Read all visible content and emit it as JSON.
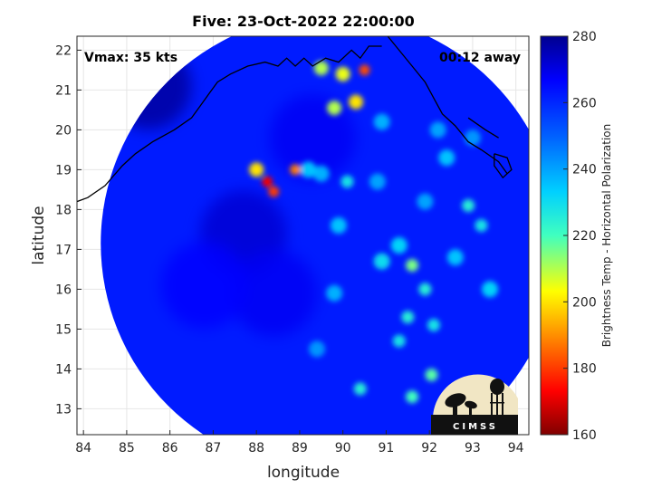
{
  "chart_data": {
    "type": "heatmap",
    "title": "Five: 23-Oct-2022 22:00:00",
    "xlabel": "longitude",
    "ylabel": "latitude",
    "xlim": [
      83.85,
      94.3
    ],
    "ylim": [
      12.35,
      22.35
    ],
    "xticks": [
      "84",
      "85",
      "86",
      "87",
      "88",
      "89",
      "90",
      "91",
      "92",
      "93",
      "94"
    ],
    "yticks": [
      "13",
      "14",
      "15",
      "16",
      "17",
      "18",
      "19",
      "20",
      "21",
      "22"
    ],
    "grid": true,
    "colorbar": {
      "label": "Brightness Temp - Horizontal Polarization",
      "range": [
        160,
        280
      ],
      "ticks": [
        "160",
        "180",
        "200",
        "220",
        "240",
        "260",
        "280"
      ],
      "colormap": "jet"
    },
    "swath_center": [
      89.7,
      17.15
    ],
    "swath_radius_deg": 5.3,
    "background_temp": 262,
    "cold_features": [
      {
        "lon": 88.25,
        "lat": 18.7,
        "temp": 172
      },
      {
        "lon": 88.4,
        "lat": 18.45,
        "temp": 180
      },
      {
        "lon": 88.9,
        "lat": 19.0,
        "temp": 188
      },
      {
        "lon": 88.0,
        "lat": 19.0,
        "temp": 200
      },
      {
        "lon": 90.5,
        "lat": 21.5,
        "temp": 182
      },
      {
        "lon": 90.0,
        "lat": 21.4,
        "temp": 205
      },
      {
        "lon": 89.5,
        "lat": 21.55,
        "temp": 210
      },
      {
        "lon": 90.3,
        "lat": 20.7,
        "temp": 200
      },
      {
        "lon": 89.8,
        "lat": 20.55,
        "temp": 210
      },
      {
        "lon": 91.6,
        "lat": 16.6,
        "temp": 215
      },
      {
        "lon": 92.05,
        "lat": 13.85,
        "temp": 218
      },
      {
        "lon": 91.6,
        "lat": 13.3,
        "temp": 220
      },
      {
        "lon": 90.4,
        "lat": 13.5,
        "temp": 225
      },
      {
        "lon": 91.3,
        "lat": 14.7,
        "temp": 228
      },
      {
        "lon": 91.5,
        "lat": 15.3,
        "temp": 225
      },
      {
        "lon": 92.1,
        "lat": 15.1,
        "temp": 228
      },
      {
        "lon": 91.9,
        "lat": 16.0,
        "temp": 225
      },
      {
        "lon": 92.9,
        "lat": 18.1,
        "temp": 225
      },
      {
        "lon": 93.2,
        "lat": 17.6,
        "temp": 228
      },
      {
        "lon": 90.1,
        "lat": 18.7,
        "temp": 228
      },
      {
        "lon": 91.3,
        "lat": 17.1,
        "temp": 232
      },
      {
        "lon": 90.9,
        "lat": 16.7,
        "temp": 230
      },
      {
        "lon": 89.9,
        "lat": 17.6,
        "temp": 235
      },
      {
        "lon": 92.4,
        "lat": 19.3,
        "temp": 235
      },
      {
        "lon": 92.6,
        "lat": 16.8,
        "temp": 235
      },
      {
        "lon": 93.4,
        "lat": 16.0,
        "temp": 232
      },
      {
        "lon": 89.8,
        "lat": 15.9,
        "temp": 238
      },
      {
        "lon": 89.4,
        "lat": 14.5,
        "temp": 242
      },
      {
        "lon": 90.8,
        "lat": 18.7,
        "temp": 240
      },
      {
        "lon": 91.9,
        "lat": 18.2,
        "temp": 240
      },
      {
        "lon": 89.2,
        "lat": 19.0,
        "temp": 235
      },
      {
        "lon": 89.5,
        "lat": 18.9,
        "temp": 238
      },
      {
        "lon": 90.9,
        "lat": 20.2,
        "temp": 238
      },
      {
        "lon": 92.2,
        "lat": 20.0,
        "temp": 240
      },
      {
        "lon": 93.0,
        "lat": 19.8,
        "temp": 242
      }
    ],
    "warm_features": [
      {
        "lon": 85.5,
        "lat": 21.1,
        "temp": 278
      },
      {
        "lon": 87.7,
        "lat": 17.4,
        "temp": 272
      },
      {
        "lon": 88.4,
        "lat": 15.9,
        "temp": 268
      },
      {
        "lon": 86.8,
        "lat": 16.1,
        "temp": 266
      },
      {
        "lon": 89.3,
        "lat": 19.8,
        "temp": 268
      }
    ]
  },
  "annotations": {
    "vmax": "Vmax: 35 kts",
    "time_away": "00:12 away"
  },
  "logo": {
    "text": "CIMSS"
  }
}
